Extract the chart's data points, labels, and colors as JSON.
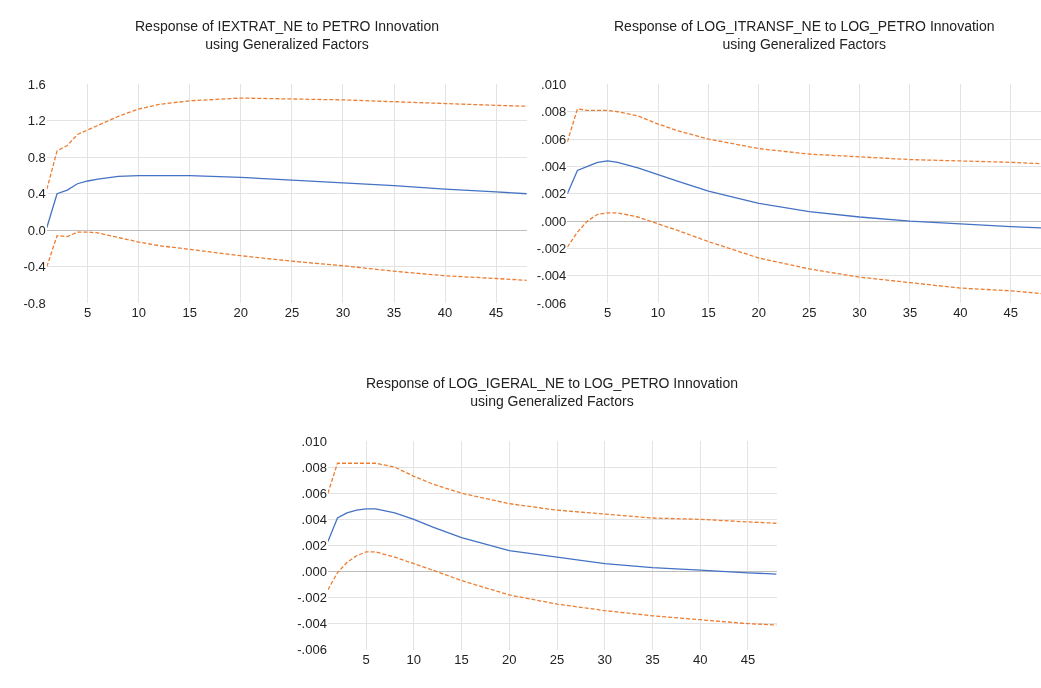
{
  "chart_data": [
    {
      "type": "line",
      "title": "Response of IEXTRAT_NE to PETRO Innovation",
      "subtitle": "using Generalized Factors",
      "grid": true,
      "marker": "none",
      "x": [
        1,
        2,
        3,
        4,
        5,
        6,
        8,
        10,
        12,
        15,
        20,
        25,
        30,
        35,
        40,
        45,
        48
      ],
      "xlim": [
        1,
        48
      ],
      "xticks": [
        5,
        10,
        15,
        20,
        25,
        30,
        35,
        40,
        45
      ],
      "ylim": [
        -0.8,
        1.6
      ],
      "yticks": [
        {
          "value": -0.8,
          "label": "-0.8"
        },
        {
          "value": -0.4,
          "label": "-0.4"
        },
        {
          "value": 0,
          "label": "0.0"
        },
        {
          "value": 0.4,
          "label": "0.4"
        },
        {
          "value": 0.8,
          "label": "0.8"
        },
        {
          "value": 1.2,
          "label": "1.2"
        },
        {
          "value": 1.6,
          "label": "1.6"
        }
      ],
      "series": [
        {
          "color": "#4472c4",
          "line_style": "solid",
          "values": [
            0.03,
            0.4,
            0.44,
            0.51,
            0.54,
            0.56,
            0.59,
            0.6,
            0.6,
            0.6,
            0.58,
            0.55,
            0.52,
            0.49,
            0.45,
            0.42,
            0.4
          ]
        },
        {
          "color": "#ed7d31",
          "line_style": "dashed",
          "values": [
            0.45,
            0.87,
            0.93,
            1.05,
            1.1,
            1.15,
            1.25,
            1.33,
            1.38,
            1.42,
            1.45,
            1.44,
            1.43,
            1.41,
            1.39,
            1.37,
            1.36
          ]
        },
        {
          "color": "#ed7d31",
          "line_style": "dashed",
          "values": [
            -0.4,
            -0.06,
            -0.07,
            -0.02,
            -0.02,
            -0.03,
            -0.08,
            -0.13,
            -0.17,
            -0.21,
            -0.28,
            -0.34,
            -0.39,
            -0.45,
            -0.5,
            -0.53,
            -0.55
          ]
        }
      ]
    },
    {
      "type": "line",
      "title": "Response of LOG_ITRANSF_NE to LOG_PETRO Innovation",
      "subtitle": "using Generalized Factors",
      "grid": true,
      "marker": "none",
      "x": [
        1,
        2,
        3,
        4,
        5,
        6,
        8,
        10,
        12,
        15,
        20,
        25,
        30,
        35,
        40,
        45,
        48
      ],
      "xlim": [
        1,
        48
      ],
      "xticks": [
        5,
        10,
        15,
        20,
        25,
        30,
        35,
        40,
        45
      ],
      "ylim": [
        -0.006,
        0.01
      ],
      "yticks": [
        {
          "value": -0.006,
          "label": "-.006"
        },
        {
          "value": -0.004,
          "label": "-.004"
        },
        {
          "value": -0.002,
          "label": "-.002"
        },
        {
          "value": 0,
          "label": ".000"
        },
        {
          "value": 0.002,
          "label": ".002"
        },
        {
          "value": 0.004,
          "label": ".004"
        },
        {
          "value": 0.006,
          "label": ".006"
        },
        {
          "value": 0.008,
          "label": ".008"
        },
        {
          "value": 0.01,
          "label": ".010"
        }
      ],
      "series": [
        {
          "color": "#4472c4",
          "line_style": "solid",
          "values": [
            0.002,
            0.0037,
            0.004,
            0.0043,
            0.0044,
            0.0043,
            0.0039,
            0.0034,
            0.0029,
            0.0022,
            0.0013,
            0.0007,
            0.0003,
            0.0,
            -0.0002,
            -0.0004,
            -0.0005
          ]
        },
        {
          "color": "#ed7d31",
          "line_style": "dashed",
          "values": [
            0.0058,
            0.0082,
            0.0081,
            0.0081,
            0.0081,
            0.008,
            0.0077,
            0.0071,
            0.0066,
            0.006,
            0.0053,
            0.0049,
            0.0047,
            0.0045,
            0.0044,
            0.0043,
            0.0042
          ]
        },
        {
          "color": "#ed7d31",
          "line_style": "dashed",
          "values": [
            -0.0019,
            -0.0008,
            0.0,
            0.0005,
            0.0006,
            0.0006,
            0.0003,
            -0.0002,
            -0.0007,
            -0.0015,
            -0.0027,
            -0.0035,
            -0.0041,
            -0.0045,
            -0.0049,
            -0.0051,
            -0.0053
          ]
        }
      ]
    },
    {
      "type": "line",
      "title": "Response of LOG_IGERAL_NE to LOG_PETRO Innovation",
      "subtitle": "using Generalized Factors",
      "grid": true,
      "marker": "none",
      "x": [
        1,
        2,
        3,
        4,
        5,
        6,
        8,
        10,
        12,
        15,
        20,
        25,
        30,
        35,
        40,
        45,
        48
      ],
      "xlim": [
        1,
        48
      ],
      "xticks": [
        5,
        10,
        15,
        20,
        25,
        30,
        35,
        40,
        45
      ],
      "ylim": [
        -0.006,
        0.01
      ],
      "yticks": [
        {
          "value": -0.006,
          "label": "-.006"
        },
        {
          "value": -0.004,
          "label": "-.004"
        },
        {
          "value": -0.002,
          "label": "-.002"
        },
        {
          "value": 0,
          "label": ".000"
        },
        {
          "value": 0.002,
          "label": ".002"
        },
        {
          "value": 0.004,
          "label": ".004"
        },
        {
          "value": 0.006,
          "label": ".006"
        },
        {
          "value": 0.008,
          "label": ".008"
        },
        {
          "value": 0.01,
          "label": ".010"
        }
      ],
      "series": [
        {
          "color": "#4472c4",
          "line_style": "solid",
          "values": [
            0.0023,
            0.0041,
            0.0045,
            0.0047,
            0.0048,
            0.0048,
            0.0045,
            0.004,
            0.0034,
            0.0026,
            0.0016,
            0.0011,
            0.0006,
            0.0003,
            0.0001,
            -0.0001,
            -0.0002
          ]
        },
        {
          "color": "#ed7d31",
          "line_style": "dashed",
          "values": [
            0.006,
            0.0083,
            0.0083,
            0.0083,
            0.0083,
            0.0083,
            0.008,
            0.0073,
            0.0067,
            0.006,
            0.0052,
            0.0047,
            0.0044,
            0.0041,
            0.004,
            0.0038,
            0.0037
          ]
        },
        {
          "color": "#ed7d31",
          "line_style": "dashed",
          "values": [
            -0.0014,
            -0.0001,
            0.0007,
            0.0012,
            0.0015,
            0.0015,
            0.0011,
            0.0006,
            0.0001,
            -0.0007,
            -0.0018,
            -0.0025,
            -0.003,
            -0.0034,
            -0.0037,
            -0.004,
            -0.0041
          ]
        }
      ]
    }
  ]
}
